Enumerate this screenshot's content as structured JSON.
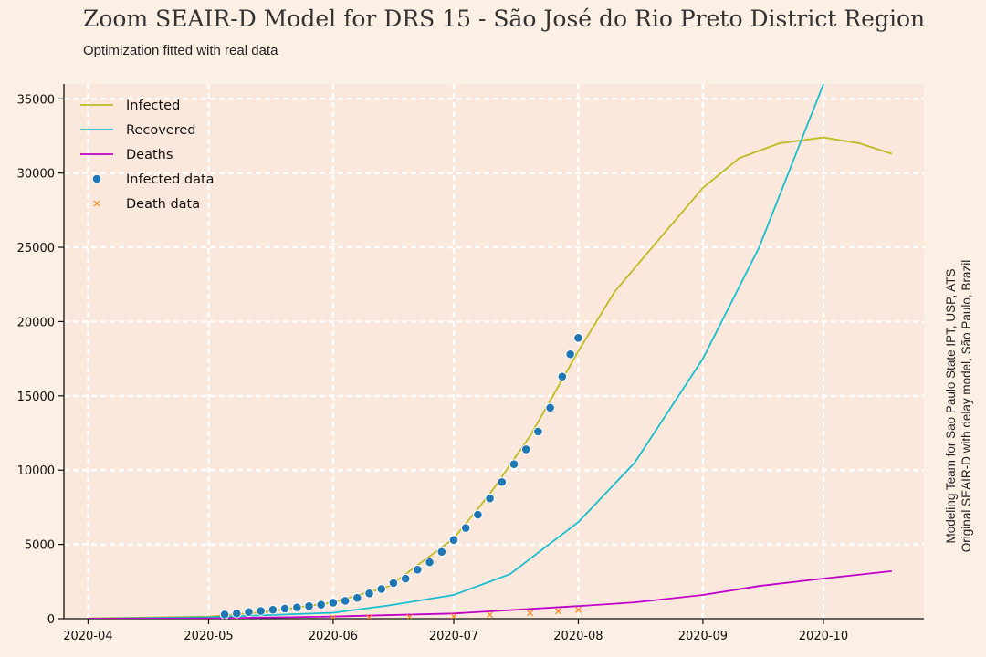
{
  "title": "Zoom SEAIR-D Model for DRS 15 - São José do Rio Preto District Region",
  "subtitle": "Optimization fitted with real data",
  "side_note": {
    "line1": "Modeling Team for Sao Paulo State IPT, USP, ATS",
    "line2": "Original SEAIR-D with delay model, São Paulo, Brazil"
  },
  "colors": {
    "background": "#fcefe4",
    "plot_background": "#fae8dc",
    "infected": "#bcbd22",
    "recovered": "#17becf",
    "deaths": "#c000c8",
    "infected_data": "#1f77b4",
    "death_data": "#ff7f0e"
  },
  "chart_data": {
    "type": "line",
    "title": "Zoom SEAIR-D Model for DRS 15 - São José do Rio Preto District Region",
    "subtitle": "Optimization fitted with real data",
    "xlabel": "",
    "ylabel": "",
    "x_axis": "date",
    "xlim": [
      "2020-03-26",
      "2020-10-26"
    ],
    "ylim": [
      0,
      36000
    ],
    "grid": true,
    "legend_position": "top-left",
    "x_ticks": [
      "2020-04",
      "2020-05",
      "2020-06",
      "2020-07",
      "2020-08",
      "2020-09",
      "2020-10"
    ],
    "x_tick_dates": [
      "2020-04-01",
      "2020-05-01",
      "2020-06-01",
      "2020-07-01",
      "2020-08-01",
      "2020-09-01",
      "2020-10-01"
    ],
    "y_ticks": [
      0,
      5000,
      10000,
      15000,
      20000,
      25000,
      30000,
      35000
    ],
    "series": [
      {
        "name": "Infected",
        "kind": "line",
        "color": "#bcbd22",
        "points": [
          [
            "2020-04-01",
            20
          ],
          [
            "2020-05-01",
            150
          ],
          [
            "2020-05-15",
            450
          ],
          [
            "2020-06-01",
            1100
          ],
          [
            "2020-06-15",
            2200
          ],
          [
            "2020-07-01",
            5400
          ],
          [
            "2020-07-10",
            8400
          ],
          [
            "2020-07-20",
            12300
          ],
          [
            "2020-08-01",
            18000
          ],
          [
            "2020-08-10",
            22000
          ],
          [
            "2020-08-20",
            25200
          ],
          [
            "2020-09-01",
            29000
          ],
          [
            "2020-09-10",
            31000
          ],
          [
            "2020-09-20",
            32000
          ],
          [
            "2020-10-01",
            32400
          ],
          [
            "2020-10-10",
            32000
          ],
          [
            "2020-10-18",
            31300
          ]
        ]
      },
      {
        "name": "Recovered",
        "kind": "line",
        "color": "#17becf",
        "points": [
          [
            "2020-04-01",
            0
          ],
          [
            "2020-05-01",
            100
          ],
          [
            "2020-06-01",
            400
          ],
          [
            "2020-06-15",
            900
          ],
          [
            "2020-07-01",
            1600
          ],
          [
            "2020-07-15",
            3000
          ],
          [
            "2020-08-01",
            6500
          ],
          [
            "2020-08-15",
            10500
          ],
          [
            "2020-09-01",
            17500
          ],
          [
            "2020-09-15",
            25000
          ],
          [
            "2020-10-01",
            36000
          ]
        ]
      },
      {
        "name": "Deaths",
        "kind": "line",
        "color": "#c000c8",
        "points": [
          [
            "2020-04-01",
            0
          ],
          [
            "2020-05-01",
            20
          ],
          [
            "2020-06-01",
            150
          ],
          [
            "2020-07-01",
            350
          ],
          [
            "2020-08-01",
            850
          ],
          [
            "2020-08-15",
            1100
          ],
          [
            "2020-09-01",
            1600
          ],
          [
            "2020-09-15",
            2200
          ],
          [
            "2020-10-01",
            2700
          ],
          [
            "2020-10-18",
            3200
          ]
        ]
      },
      {
        "name": "Infected data",
        "kind": "scatter",
        "marker": "circle",
        "color": "#1f77b4",
        "points": [
          [
            "2020-05-05",
            280
          ],
          [
            "2020-05-08",
            350
          ],
          [
            "2020-05-11",
            450
          ],
          [
            "2020-05-14",
            520
          ],
          [
            "2020-05-17",
            600
          ],
          [
            "2020-05-20",
            680
          ],
          [
            "2020-05-23",
            760
          ],
          [
            "2020-05-26",
            850
          ],
          [
            "2020-05-29",
            940
          ],
          [
            "2020-06-01",
            1080
          ],
          [
            "2020-06-04",
            1200
          ],
          [
            "2020-06-07",
            1400
          ],
          [
            "2020-06-10",
            1700
          ],
          [
            "2020-06-13",
            2000
          ],
          [
            "2020-06-16",
            2400
          ],
          [
            "2020-06-19",
            2700
          ],
          [
            "2020-06-22",
            3300
          ],
          [
            "2020-06-25",
            3800
          ],
          [
            "2020-06-28",
            4500
          ],
          [
            "2020-07-01",
            5300
          ],
          [
            "2020-07-04",
            6100
          ],
          [
            "2020-07-07",
            7000
          ],
          [
            "2020-07-10",
            8100
          ],
          [
            "2020-07-13",
            9200
          ],
          [
            "2020-07-16",
            10400
          ],
          [
            "2020-07-19",
            11400
          ],
          [
            "2020-07-22",
            12600
          ],
          [
            "2020-07-25",
            14200
          ],
          [
            "2020-07-28",
            16300
          ],
          [
            "2020-07-30",
            17800
          ],
          [
            "2020-08-01",
            18900
          ]
        ]
      },
      {
        "name": "Death data",
        "kind": "scatter",
        "marker": "x",
        "color": "#ff7f0e",
        "points": [
          [
            "2020-06-01",
            50
          ],
          [
            "2020-06-10",
            80
          ],
          [
            "2020-06-20",
            110
          ],
          [
            "2020-07-01",
            160
          ],
          [
            "2020-07-10",
            260
          ],
          [
            "2020-07-20",
            380
          ],
          [
            "2020-07-27",
            500
          ],
          [
            "2020-08-01",
            600
          ]
        ]
      }
    ]
  }
}
